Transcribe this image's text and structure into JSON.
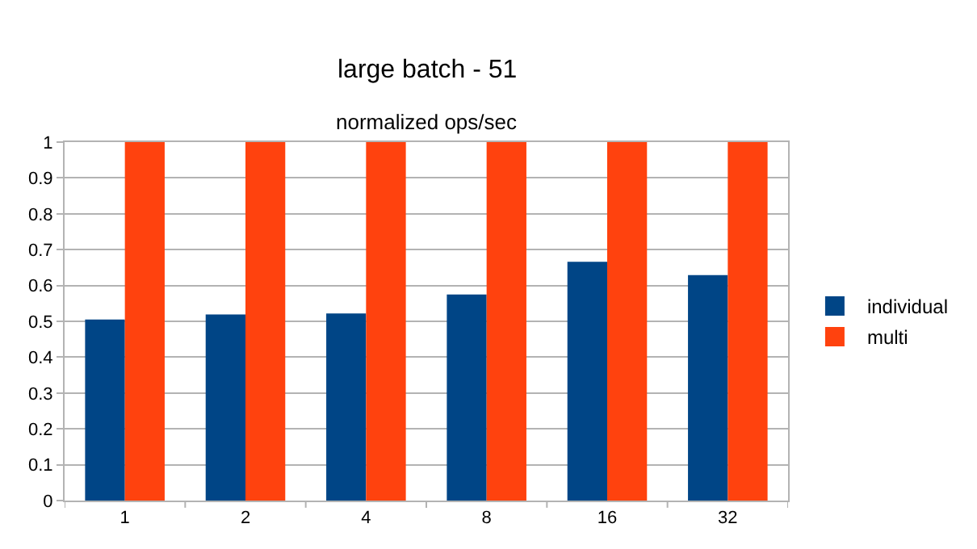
{
  "chart_data": {
    "type": "bar",
    "title": "large batch - 51",
    "subtitle": "normalized ops/sec",
    "categories": [
      "1",
      "2",
      "4",
      "8",
      "16",
      "32"
    ],
    "series": [
      {
        "name": "individual",
        "color": "#004586",
        "values": [
          0.505,
          0.519,
          0.522,
          0.575,
          0.666,
          0.629
        ]
      },
      {
        "name": "multi",
        "color": "#ff420e",
        "values": [
          1,
          1,
          1,
          1,
          1,
          1
        ]
      }
    ],
    "ylim": [
      0,
      1
    ],
    "yticks": [
      0,
      0.1,
      0.2,
      0.3,
      0.4,
      0.5,
      0.6,
      0.7,
      0.8,
      0.9,
      1
    ],
    "grid": "y",
    "legend": "right"
  }
}
